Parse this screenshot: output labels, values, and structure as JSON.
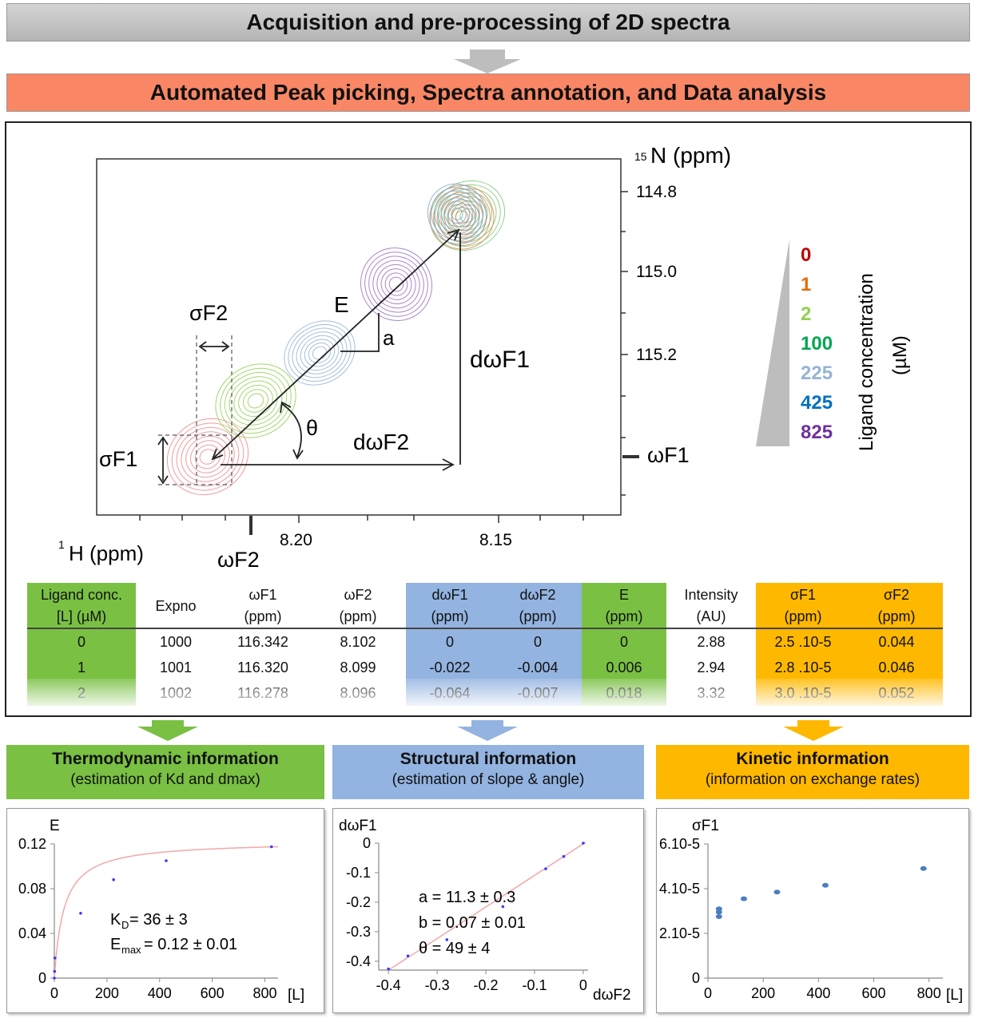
{
  "banners": {
    "acquisition": "Acquisition and pre-processing of 2D spectra",
    "automated": "Automated Peak picking, Spectra annotation, and Data analysis"
  },
  "spectrum": {
    "n_axis_label": "N (ppm)",
    "n_axis_superscript": "15",
    "h_axis_label": "H (ppm)",
    "h_axis_superscript": "1",
    "n_ticks": [
      "114.8",
      "115.0",
      "115.2"
    ],
    "h_ticks": [
      "8.20",
      "8.15"
    ],
    "wF1": "ωF1",
    "wF2": "ωF2",
    "sigmaF1": "σF1",
    "sigmaF2": "σF2",
    "E": "E",
    "a": "a",
    "theta": "θ",
    "dwF1": "dωF1",
    "dwF2": "dωF2"
  },
  "legend": {
    "title": "Ligand concentration",
    "unit": "(µM)",
    "items": [
      {
        "label": "0",
        "color": "#c00000"
      },
      {
        "label": "1",
        "color": "#e46c0a"
      },
      {
        "label": "2",
        "color": "#92d050"
      },
      {
        "label": "100",
        "color": "#00a650"
      },
      {
        "label": "225",
        "color": "#95b3d7"
      },
      {
        "label": "425",
        "color": "#0070c0"
      },
      {
        "label": "825",
        "color": "#7030a0"
      }
    ]
  },
  "table": {
    "headers": [
      [
        "Ligand conc.",
        "[L] (µM)"
      ],
      [
        "Expno",
        ""
      ],
      [
        "ωF1",
        "(ppm)"
      ],
      [
        "ωF2",
        "(ppm)"
      ],
      [
        "dωF1",
        "(ppm)"
      ],
      [
        "dωF2",
        "(ppm)"
      ],
      [
        "E",
        "(ppm)"
      ],
      [
        "Intensity",
        "(AU)"
      ],
      [
        "σF1",
        "(ppm)"
      ],
      [
        "σF2",
        "(ppm)"
      ]
    ],
    "rows": [
      [
        "0",
        "1000",
        "116.342",
        "8.102",
        "0",
        "0",
        "0",
        "2.88",
        "2.5 .10-5",
        "0.044"
      ],
      [
        "1",
        "1001",
        "116.320",
        "8.099",
        "-0.022",
        "-0.004",
        "0.006",
        "2.94",
        "2.8 .10-5",
        "0.046"
      ],
      [
        "2",
        "1002",
        "116.278",
        "8.096",
        "-0.064",
        "-0.007",
        "0.018",
        "3.32",
        "3.0 .10-5",
        "0.052"
      ]
    ]
  },
  "panels": {
    "thermo": {
      "title": "Thermodynamic information",
      "subtitle": "(estimation of Kd and dmax)"
    },
    "struct": {
      "title": "Structural information",
      "subtitle": "(estimation of slope & angle)"
    },
    "kinetic": {
      "title": "Kinetic information",
      "subtitle": "(information on exchange rates)"
    }
  },
  "colors": {
    "gray_banner": "#c0c0c0",
    "salmon_banner": "#f98766",
    "green": "#79c043",
    "blue": "#93b3e0",
    "orange": "#ffb800",
    "fit_curve": "#f4a7a7",
    "point": "#3a3aff",
    "kinetic_point": "#4a7ec0"
  },
  "chart_data": [
    {
      "type": "scatter",
      "ylabel": "E",
      "xlabel": "[L]",
      "x_ticks": [
        "0",
        "200",
        "400",
        "600",
        "800"
      ],
      "y_ticks": [
        "0",
        "0.04",
        "0.08",
        "0.12"
      ],
      "xlim": [
        0,
        850
      ],
      "ylim": [
        0,
        0.12
      ],
      "points": [
        [
          0,
          0
        ],
        [
          1,
          0.006
        ],
        [
          2,
          0.018
        ],
        [
          100,
          0.058
        ],
        [
          225,
          0.088
        ],
        [
          425,
          0.105
        ],
        [
          825,
          0.1175
        ]
      ],
      "fit": {
        "KD": 36,
        "Emax": 0.1225
      },
      "annotations": [
        "K",
        "D",
        " = 36 ± 3",
        "E",
        "max",
        "= 0.12 ± 0.01"
      ]
    },
    {
      "type": "scatter",
      "ylabel": "dωF1",
      "xlabel": "dωF2",
      "x_ticks": [
        "-0.4",
        "-0.3",
        "-0.2",
        "-0.1",
        "0"
      ],
      "y_ticks": [
        "0",
        "-0.1",
        "-0.2",
        "-0.3",
        "-0.4"
      ],
      "xlim": [
        -0.42,
        0.01
      ],
      "ylim": [
        -0.43,
        0
      ],
      "points": [
        [
          0,
          0
        ],
        [
          -0.04,
          -0.045
        ],
        [
          -0.077,
          -0.087
        ],
        [
          -0.165,
          -0.215
        ],
        [
          -0.28,
          -0.327
        ],
        [
          -0.36,
          -0.382
        ],
        [
          -0.4,
          -0.426
        ]
      ],
      "annotations": [
        "a = 11.3 ± 0.3",
        "b = 0.07 ± 0.01",
        "θ = 49 ± 4"
      ]
    },
    {
      "type": "scatter",
      "ylabel": "σF1",
      "xlabel": "[L]",
      "x_ticks": [
        "0",
        "200",
        "400",
        "600",
        "800"
      ],
      "y_ticks": [
        "0",
        "2.10-5",
        "4.10-5",
        "6.10-5"
      ],
      "xlim": [
        0,
        850
      ],
      "ylim": [
        0,
        6e-05
      ],
      "points": [
        [
          40,
          2.75e-05
        ],
        [
          40,
          2.95e-05
        ],
        [
          40,
          3.1e-05
        ],
        [
          130,
          3.55e-05
        ],
        [
          250,
          3.85e-05
        ],
        [
          425,
          4.15e-05
        ],
        [
          780,
          4.9e-05
        ]
      ]
    }
  ]
}
